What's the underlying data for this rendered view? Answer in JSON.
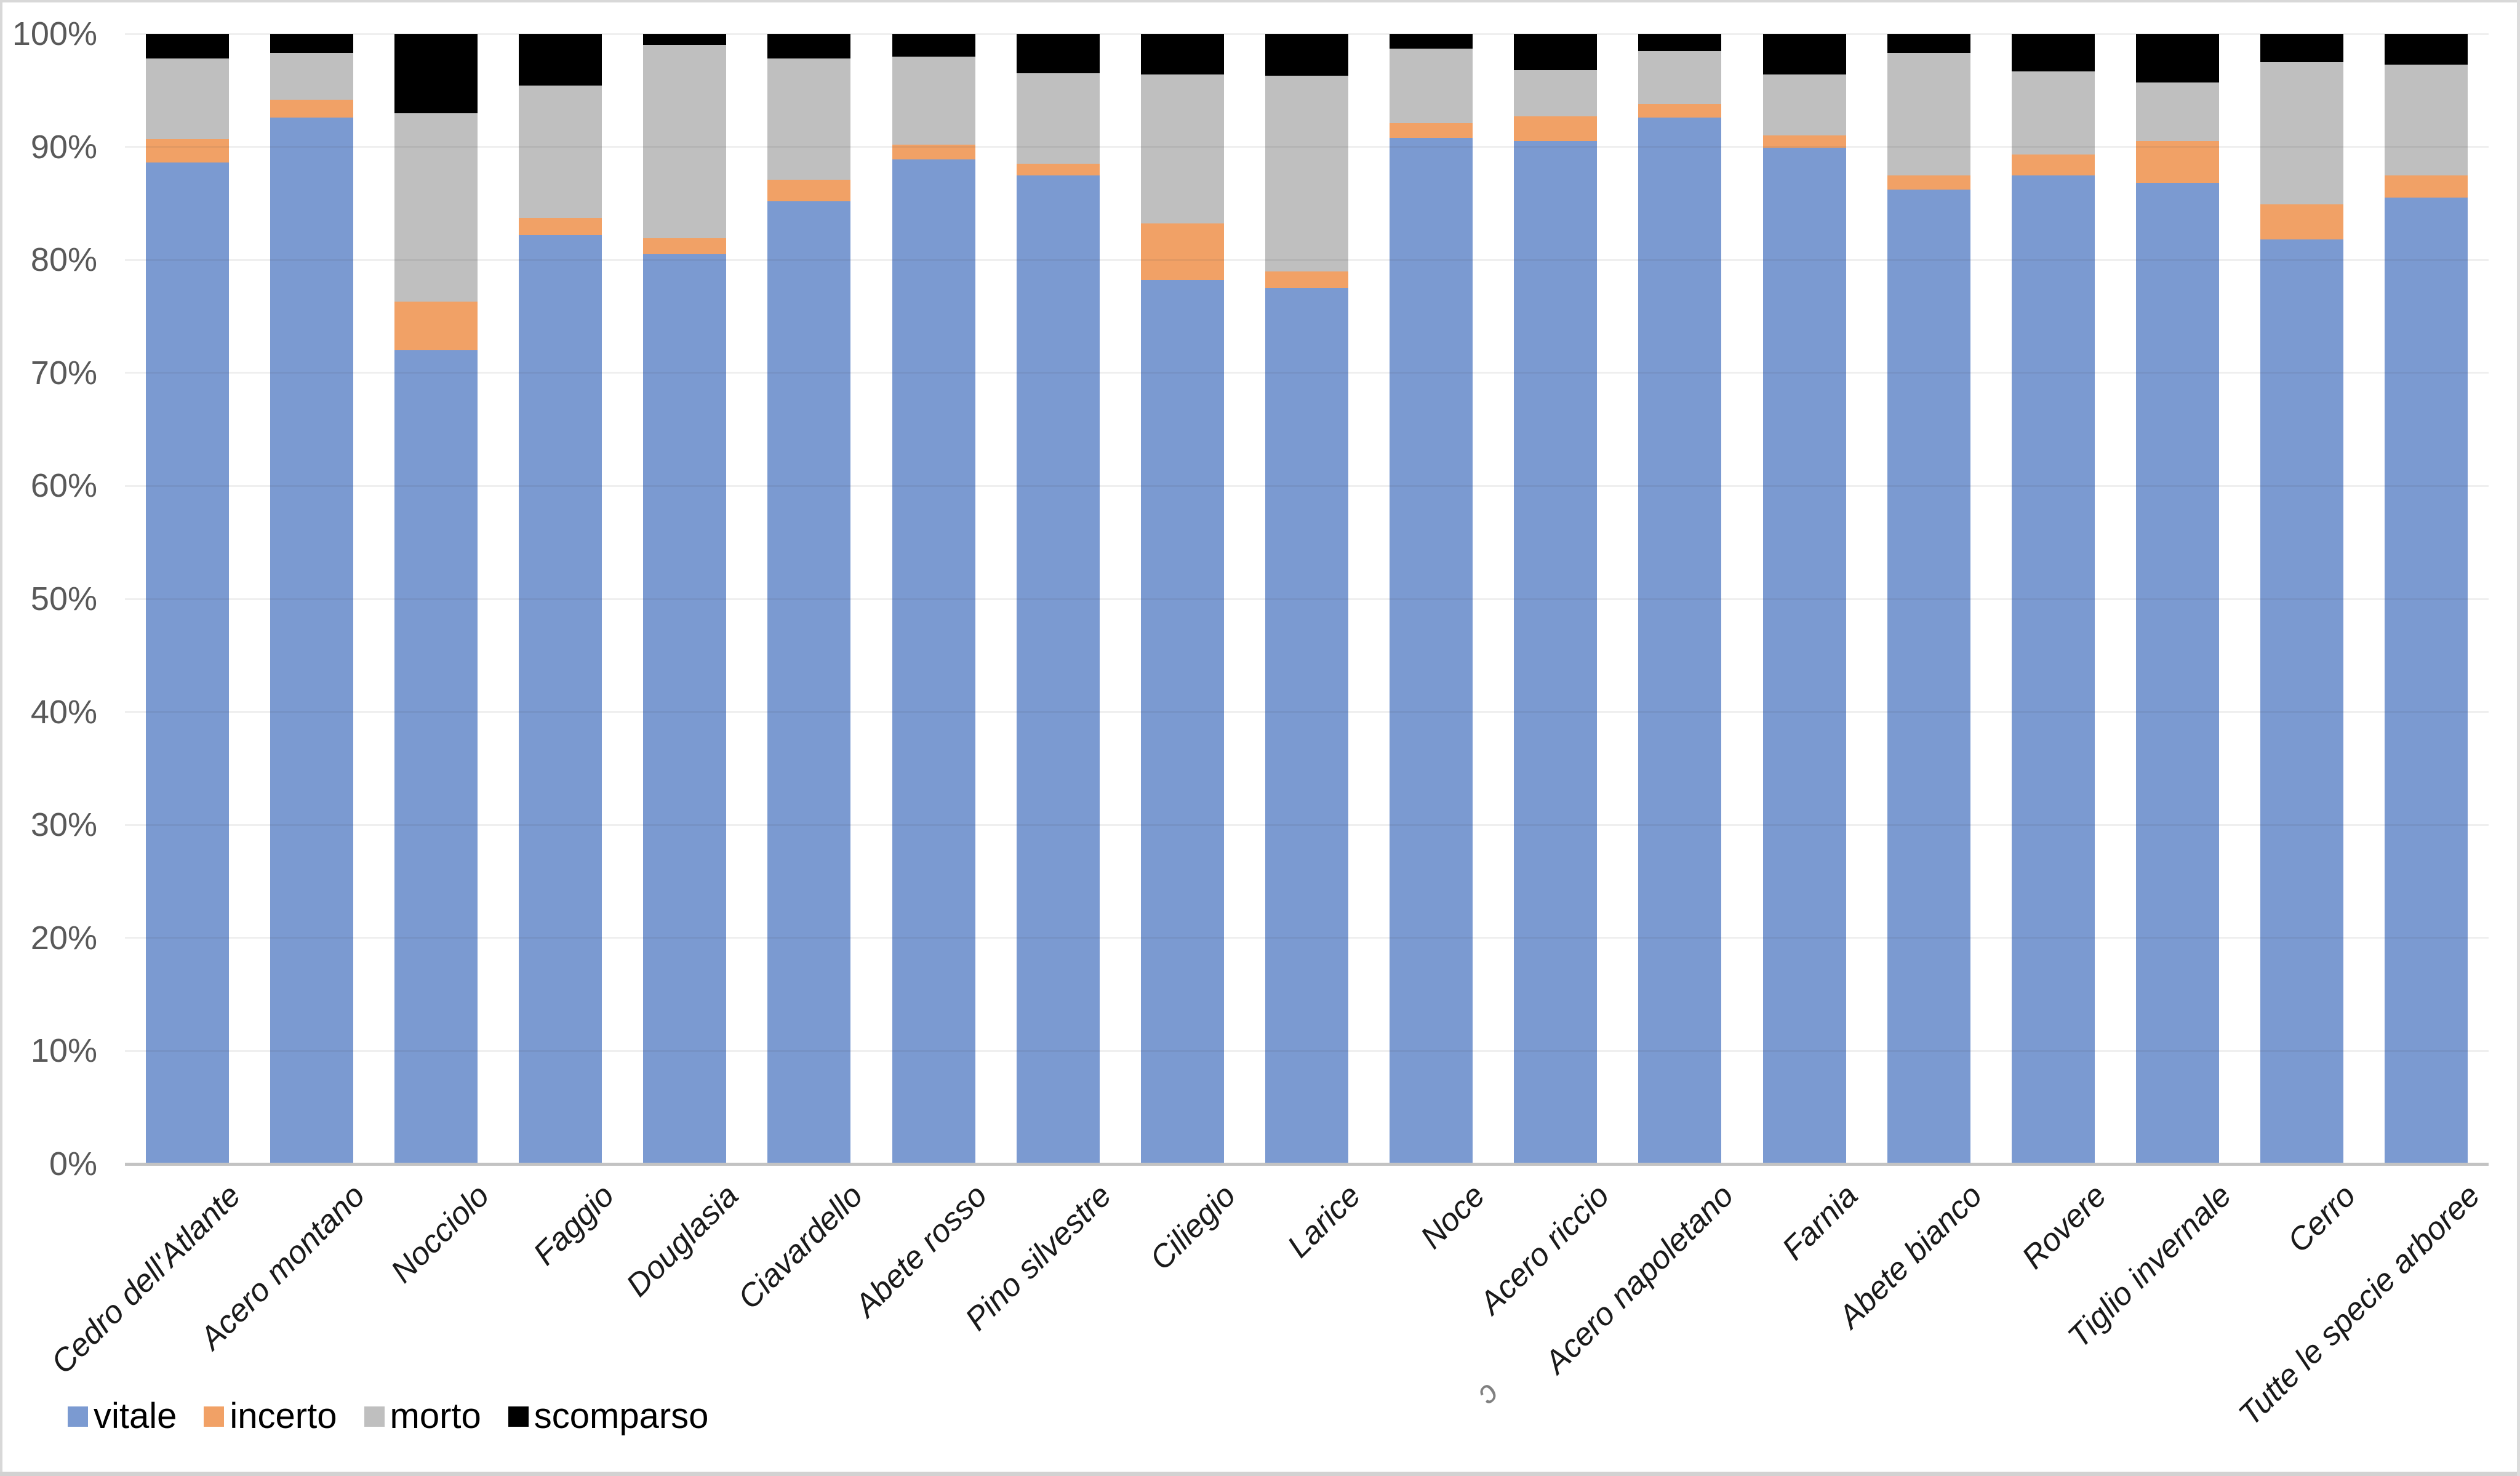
{
  "chart_data": {
    "type": "bar",
    "stacked": true,
    "percent_stacked": true,
    "title": "",
    "xlabel": "",
    "ylabel": "",
    "grid": true,
    "legend_position": "bottom-left",
    "x_label_rotation": -45,
    "categories": [
      "Cedro dell'Atlante",
      "Acero montano",
      "Nocciolo",
      "Faggio",
      "Douglasia",
      "Ciavardello",
      "Abete rosso",
      "Pino silvestre",
      "Ciliegio",
      "Larice",
      "Noce",
      "Acero riccio",
      "Acero napoletano",
      "Farnia",
      "Abete bianco",
      "Rovere",
      "Tiglio invernale",
      "Cerro",
      "Tutte le specie arboree"
    ],
    "series": [
      {
        "name": "vitale",
        "color": "#7B9AD1",
        "values": [
          88.6,
          92.6,
          72.0,
          82.2,
          80.5,
          85.2,
          88.9,
          87.5,
          78.2,
          77.5,
          90.8,
          90.5,
          92.6,
          89.9,
          86.2,
          87.5,
          86.8,
          81.8,
          85.5
        ]
      },
      {
        "name": "incerto",
        "color": "#F1A166",
        "values": [
          2.1,
          1.6,
          4.3,
          1.5,
          1.4,
          1.9,
          1.3,
          1.0,
          5.0,
          1.5,
          1.3,
          2.2,
          1.2,
          1.1,
          1.3,
          1.8,
          3.7,
          3.1,
          2.0
        ]
      },
      {
        "name": "morto",
        "color": "#BFBFBF",
        "values": [
          7.1,
          4.1,
          16.7,
          11.7,
          17.1,
          10.7,
          7.8,
          8.0,
          13.2,
          17.3,
          6.6,
          4.1,
          4.7,
          5.4,
          10.8,
          7.4,
          5.2,
          12.6,
          9.8
        ]
      },
      {
        "name": "scomparso",
        "color": "#000000",
        "values": [
          2.2,
          1.7,
          7.0,
          4.6,
          1.0,
          2.2,
          2.0,
          3.5,
          3.6,
          3.7,
          1.3,
          3.2,
          1.5,
          3.6,
          1.7,
          3.3,
          4.3,
          2.5,
          2.7
        ]
      }
    ],
    "y_axis": {
      "min": 0,
      "max": 100,
      "tick_step": 10,
      "ticks": [
        "0%",
        "10%",
        "20%",
        "30%",
        "40%",
        "50%",
        "60%",
        "70%",
        "80%",
        "90%",
        "100%"
      ]
    },
    "legend": [
      {
        "label": "vitale",
        "color": "#7B9AD1"
      },
      {
        "label": "incerto",
        "color": "#F1A166"
      },
      {
        "label": "morto",
        "color": "#BFBFBF"
      },
      {
        "label": "scomparso",
        "color": "#000000"
      }
    ]
  },
  "decor": {
    "stray_glyph": "ↄ"
  },
  "colors": {
    "gridline": "rgba(70,70,70,0.085)",
    "axis_line": "#c3c3c3",
    "tick_text": "#595959",
    "x_label_text": "#1a1a1a",
    "window_border": "#d8d8d8"
  }
}
